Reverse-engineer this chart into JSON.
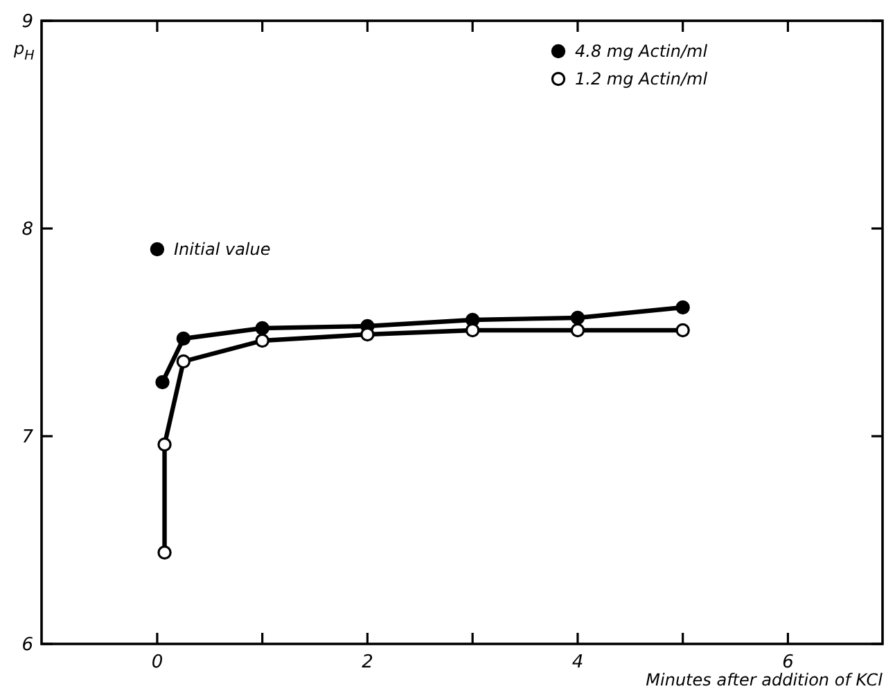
{
  "chart_data": {
    "type": "line",
    "xlabel": "Minutes after addition of KCl",
    "ylabel": "p$_{H}$",
    "xlim": [
      -1.1,
      6.9
    ],
    "ylim": [
      6,
      9
    ],
    "xticks": [
      {
        "value": 0,
        "label": "0"
      },
      {
        "value": 1,
        "label": null
      },
      {
        "value": 2,
        "label": "2"
      },
      {
        "value": 3,
        "label": null
      },
      {
        "value": 4,
        "label": "4"
      },
      {
        "value": 5,
        "label": null
      },
      {
        "value": 6,
        "label": "6"
      }
    ],
    "yticks": [
      6,
      7,
      8,
      9
    ],
    "marker": "circle",
    "line_style": "solid",
    "legend": "top right",
    "grid": false,
    "annotations": [
      {
        "text": "Initial value",
        "x": 0,
        "y": 7.9
      }
    ],
    "series": [
      {
        "name": "4.8 mg Actin/ml",
        "color": "#000000",
        "x": [
          0.05,
          0.25,
          1,
          2,
          3,
          4,
          5
        ],
        "values": [
          7.26,
          7.47,
          7.52,
          7.53,
          7.56,
          7.57,
          7.62
        ]
      },
      {
        "name": "1.2 mg Actin/ml",
        "color": "#000000",
        "colors": [
          "#ffffff",
          "#ffffff",
          "#ffffff",
          "#ffffff",
          "#ffffff",
          "#ffffff",
          "#ffffff",
          "#ffffff"
        ],
        "x": [
          0.07,
          0.07,
          0.25,
          1,
          2,
          3,
          4,
          5
        ],
        "values": [
          6.44,
          6.96,
          7.36,
          7.46,
          7.49,
          7.51,
          7.51,
          7.51
        ]
      },
      {
        "type": "scatter",
        "color": "#000000",
        "x": [
          0
        ],
        "values": [
          7.9
        ]
      }
    ]
  }
}
